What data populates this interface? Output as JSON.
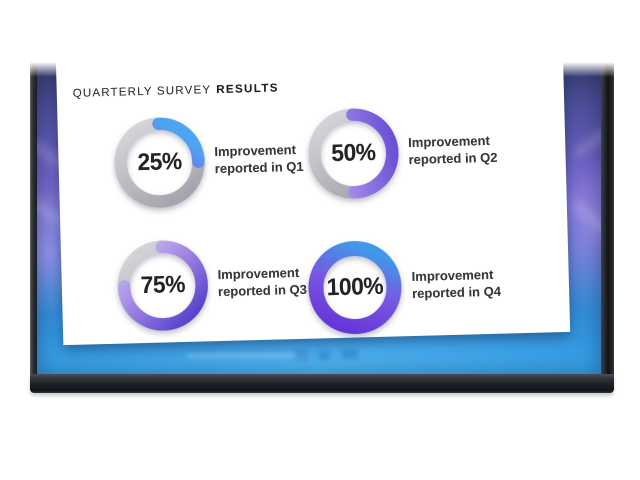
{
  "title": {
    "regular": "QUARTERLY SURVEY",
    "bold": "RESULTS"
  },
  "metrics": [
    {
      "value": 25,
      "percent_label": "25%",
      "label_line1": "Improvement",
      "label_line2": "reported in Q1",
      "arc_colors": [
        "#6e4be0",
        "#7e5fe8",
        "#4da4f2"
      ],
      "thickness": 13
    },
    {
      "value": 50,
      "percent_label": "50%",
      "label_line1": "Improvement",
      "label_line2": "reported in Q2",
      "arc_colors": [
        "#b7abee",
        "#9178e2",
        "#6b4ed4"
      ],
      "thickness": 13
    },
    {
      "value": 75,
      "percent_label": "75%",
      "label_line1": "Improvement",
      "label_line2": "reported in Q3",
      "arc_colors": [
        "#c8bcf0",
        "#9b7de2",
        "#5542cc"
      ],
      "thickness": 13
    },
    {
      "value": 100,
      "percent_label": "100%",
      "label_line1": "Improvement",
      "label_line2": "reported in Q4",
      "arc_colors": [
        "#6536d8",
        "#7a55e2",
        "#3e9ae8"
      ],
      "thickness": 15
    }
  ],
  "donut_track_colors": [
    "#d5d5da",
    "#a4a4ac"
  ],
  "chart_data": {
    "type": "pie",
    "subtype": "donut-progress-set",
    "title": "QUARTERLY SURVEY RESULTS",
    "categories": [
      "Q1",
      "Q2",
      "Q3",
      "Q4"
    ],
    "values": [
      25,
      50,
      75,
      100
    ],
    "unit": "%",
    "labels": [
      "Improvement reported in Q1",
      "Improvement reported in Q2",
      "Improvement reported in Q3",
      "Improvement reported in Q4"
    ],
    "center_labels": [
      "25%",
      "50%",
      "75%",
      "100%"
    ],
    "legend_position": "right-of-each-donut",
    "colors": {
      "progress_gradient_start": "#6d4ade",
      "progress_gradient_end": "#4aa0f0",
      "track": "#b6b6bd",
      "text": "#232327"
    }
  }
}
